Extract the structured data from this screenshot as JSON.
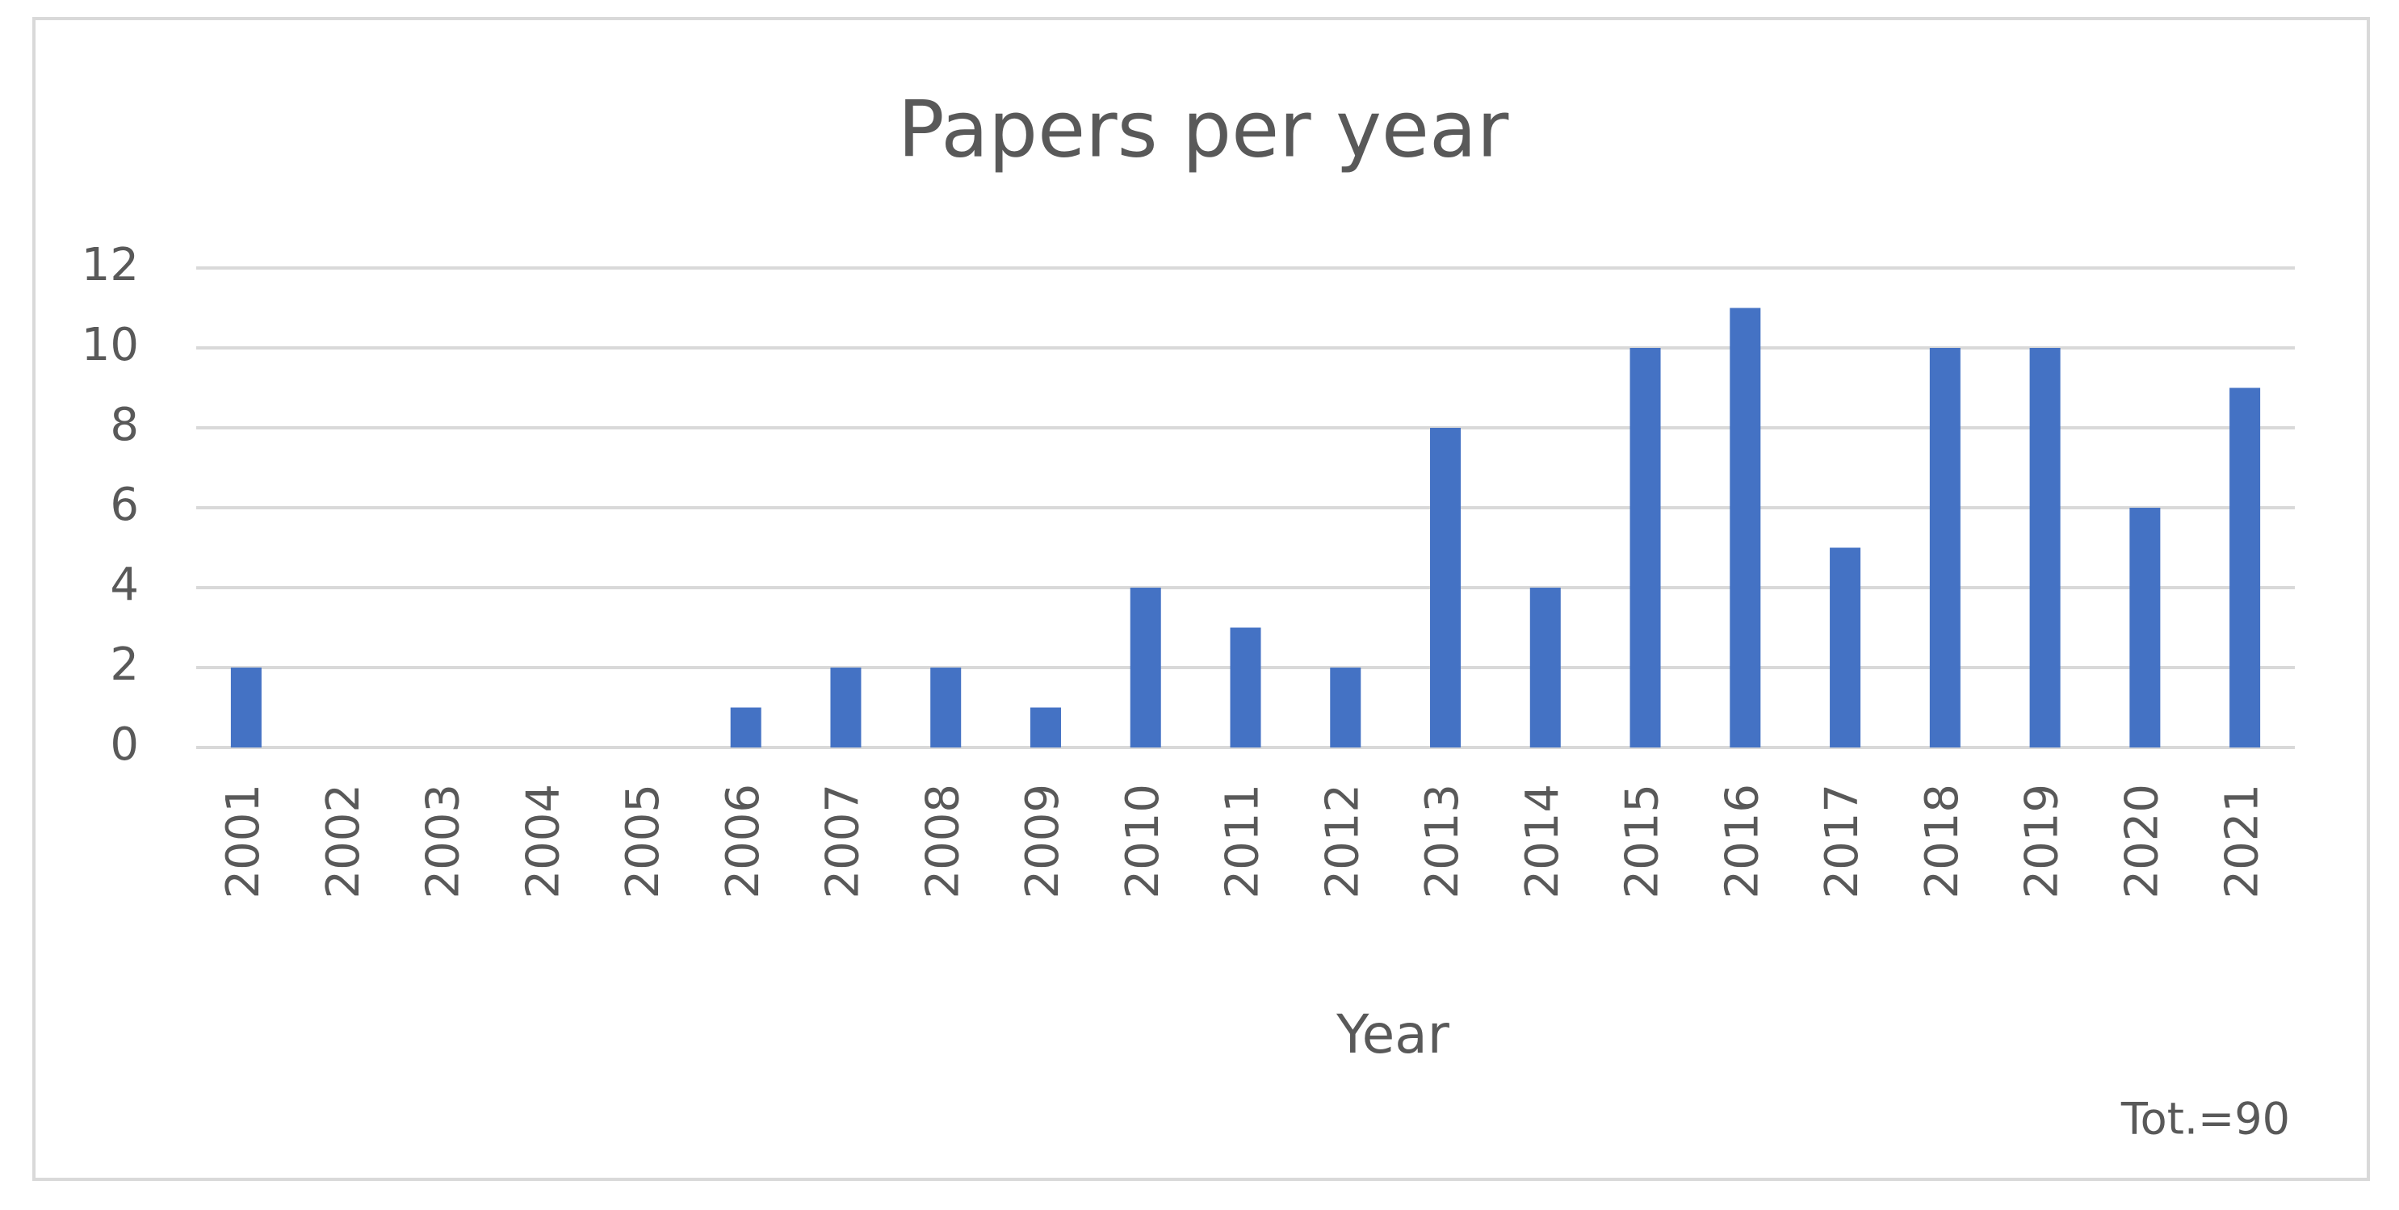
{
  "chart_data": {
    "type": "bar",
    "title": "Papers per year",
    "x_label": "Year",
    "annotation": "Tot.=90",
    "categories": [
      "2001",
      "2002",
      "2003",
      "2004",
      "2005",
      "2006",
      "2007",
      "2008",
      "2009",
      "2010",
      "2011",
      "2012",
      "2013",
      "2014",
      "2015",
      "2016",
      "2017",
      "2018",
      "2019",
      "2020",
      "2021"
    ],
    "values": [
      2,
      0,
      0,
      0,
      0,
      1,
      2,
      2,
      1,
      4,
      3,
      2,
      8,
      4,
      10,
      11,
      5,
      10,
      10,
      6,
      9
    ],
    "color": "#4472c4",
    "ylim": [
      0,
      12
    ],
    "yticks": [
      0,
      2,
      4,
      6,
      8,
      10,
      12
    ],
    "grid": true
  }
}
